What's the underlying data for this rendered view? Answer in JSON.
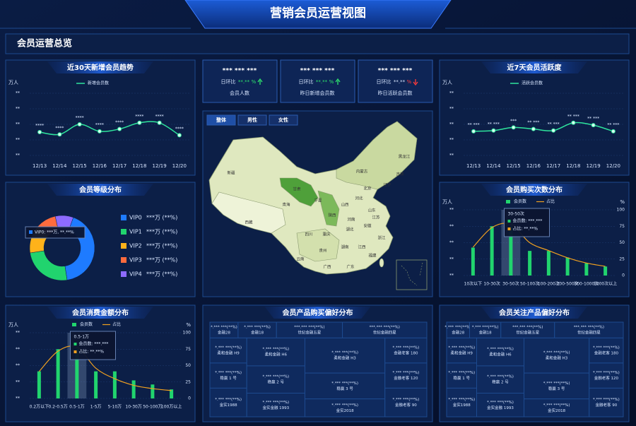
{
  "header": {
    "title": "营销会员运营视图",
    "section": "会员运营总览"
  },
  "kpis": [
    {
      "value": "*** *** ***",
      "ratio_label": "日环比",
      "ratio": "**.**",
      "unit": "%",
      "trend": "up",
      "label": "会员人数"
    },
    {
      "value": "*** *** ***",
      "ratio_label": "日环比",
      "ratio": "**.**",
      "unit": "%",
      "trend": "up",
      "label": "昨日新增会员数"
    },
    {
      "value": "*** *** ***",
      "ratio_label": "日环比",
      "ratio": "**.**",
      "unit": "%",
      "trend": "down",
      "label": "昨日活跃会员数"
    }
  ],
  "map": {
    "tabs": [
      "整体",
      "男性",
      "女性"
    ],
    "labels": [
      "新疆",
      "西藏",
      "青海",
      "甘肃",
      "内蒙古",
      "黑龙江",
      "吉林",
      "辽宁",
      "北京",
      "河北",
      "山西",
      "山东",
      "河南",
      "陕西",
      "宁夏",
      "四川",
      "重庆",
      "湖北",
      "安徽",
      "江苏",
      "浙江",
      "湖南",
      "江西",
      "福建",
      "贵州",
      "云南",
      "广西",
      "广东"
    ]
  },
  "treemaps": [
    {
      "title": "会员产品购买偏好分布",
      "cells": [
        {
          "value": "*.*** ***(**%)",
          "name": "金融28"
        },
        {
          "value": "*.*** ***(**%)",
          "name": "金融18"
        },
        {
          "value": "***.*** ***(**%)",
          "name": "世纪金融五星"
        },
        {
          "value": "***.*** ***(**%)",
          "name": "世纪金融四星"
        },
        {
          "value": "*.*** ***(**%)",
          "name": "柔和金融 H9"
        },
        {
          "value": "*.*** ***(**%)",
          "name": "稳赢 1 号"
        },
        {
          "value": "*.*** ***(**%)",
          "name": "金实1988"
        },
        {
          "value": "*.*** ***(**%)",
          "name": "柔和金融 H6"
        },
        {
          "value": "*.*** ***(**%)",
          "name": "稳赢 2 号"
        },
        {
          "value": "*.*** ***(**%)",
          "name": "金实金融 1993"
        },
        {
          "value": "*.*** ***(**%)",
          "name": "柔和金融 H3"
        },
        {
          "value": "*.*** ***(**%)",
          "name": "稳赢 3 号"
        },
        {
          "value": "*.*** ***(**%)",
          "name": "金实2018"
        },
        {
          "value": "*.*** ***(**%)",
          "name": "金融老客 180"
        },
        {
          "value": "*.*** ***(**%)",
          "name": "金融老客 120"
        },
        {
          "value": "*.*** ***(**%)",
          "name": "金融老客 90"
        }
      ]
    },
    {
      "title": "会员关注产品偏好分布",
      "cells": [
        {
          "value": "*.*** ***(**%)",
          "name": "金融28"
        },
        {
          "value": "*.*** ***(**%)",
          "name": "金融18"
        },
        {
          "value": "***.*** ***(**%)",
          "name": "世纪金融五星"
        },
        {
          "value": "***.*** ***(**%)",
          "name": "世纪金融四星"
        },
        {
          "value": "*.*** ***(**%)",
          "name": "柔和金融 H9"
        },
        {
          "value": "*.*** ***(**%)",
          "name": "稳赢 1 号"
        },
        {
          "value": "*.*** ***(**%)",
          "name": "金实1988"
        },
        {
          "value": "*.*** ***(**%)",
          "name": "柔和金融 H6"
        },
        {
          "value": "*.*** ***(**%)",
          "name": "稳赢 2 号"
        },
        {
          "value": "*.*** ***(**%)",
          "name": "金实金融 1993"
        },
        {
          "value": "*.*** ***(**%)",
          "name": "柔和金融 H3"
        },
        {
          "value": "*.*** ***(**%)",
          "name": "稳赢 3 号"
        },
        {
          "value": "*.*** ***(**%)",
          "name": "金实2018"
        },
        {
          "value": "*.*** ***(**%)",
          "name": "金融老客 180"
        },
        {
          "value": "*.*** ***(**%)",
          "name": "金融老客 120"
        },
        {
          "value": "*.*** ***(**%)",
          "name": "金融老客 90"
        }
      ]
    }
  ],
  "chart_data": [
    {
      "type": "line",
      "title": "近30天新增会员趋势",
      "y_label": "万人",
      "categories": [
        "12/13",
        "12/14",
        "12/15",
        "12/16",
        "12/17",
        "12/18",
        "12/19",
        "12/20"
      ],
      "ylim": [
        0,
        4
      ],
      "yticks": [
        {
          "value": 0,
          "label": "**"
        },
        {
          "value": 1,
          "label": "**"
        },
        {
          "value": 2,
          "label": "**"
        },
        {
          "value": 3,
          "label": "**"
        },
        {
          "value": 4,
          "label": "**"
        }
      ],
      "series": [
        {
          "name": "新增会员数",
          "color": "#2ee59d",
          "values": [
            1.5,
            1.35,
            2.0,
            1.55,
            1.7,
            2.1,
            2.1,
            1.3
          ],
          "value_labels": [
            "****",
            "****",
            "****",
            "****",
            "****",
            "****",
            "****",
            "****"
          ]
        }
      ]
    },
    {
      "type": "line",
      "title": "近7天会员活跃度",
      "y_label": "万人",
      "categories": [
        "12/13",
        "12/14",
        "12/15",
        "12/16",
        "12/17",
        "12/18",
        "12/19",
        "12/20"
      ],
      "ylim": [
        0,
        4
      ],
      "yticks": [
        {
          "value": 0,
          "label": "**"
        },
        {
          "value": 1,
          "label": "**"
        },
        {
          "value": 2,
          "label": "**"
        },
        {
          "value": 3,
          "label": "**"
        },
        {
          "value": 4,
          "label": "**"
        }
      ],
      "series": [
        {
          "name": "活跃会员数",
          "color": "#2ee59d",
          "values": [
            1.55,
            1.6,
            1.8,
            1.7,
            1.6,
            2.1,
            1.95,
            1.55
          ],
          "value_labels": [
            "** ***",
            "** ***",
            "***",
            "** ***",
            "** ***",
            "** ***",
            "** ***",
            "** ***"
          ]
        }
      ]
    },
    {
      "type": "pie",
      "title": "会员等级分布",
      "donut": true,
      "categories": [
        "VIP0",
        "VIP1",
        "VIP2",
        "VIP3",
        "VIP4"
      ],
      "values": [
        42,
        25,
        14,
        10,
        9
      ],
      "value_labels": [
        "***万 (**%)",
        "***万 (**%)",
        "***万 (**%)",
        "***万 (**%)",
        "***万 (**%)"
      ],
      "colors": [
        "#1e7bff",
        "#21d46e",
        "#ffb21a",
        "#ff6b3d",
        "#8d6bff"
      ],
      "tooltip": "VIP0: ***万, **.**%"
    },
    {
      "type": "bar",
      "title": "会员购买次数分布",
      "y_label": "万人",
      "y2_label": "%",
      "categories": [
        "10次以下",
        "10-30次",
        "30-50次",
        "50-100次",
        "100-200次",
        "200-500次",
        "500-1000次",
        "1000次以上"
      ],
      "ylim": [
        0,
        4
      ],
      "yticks": [
        {
          "value": 0,
          "label": "**"
        },
        {
          "value": 1,
          "label": "**"
        },
        {
          "value": 2,
          "label": "**"
        },
        {
          "value": 3,
          "label": "**"
        },
        {
          "value": 4,
          "label": "**"
        }
      ],
      "y2lim": [
        0,
        100
      ],
      "y2ticks": [
        0,
        25,
        50,
        75,
        100
      ],
      "series": [
        {
          "name": "会员数",
          "type": "bar",
          "color": "#21d46e",
          "values": [
            1.7,
            3,
            3,
            1.5,
            1.5,
            1.1,
            0.75,
            0.55
          ]
        },
        {
          "name": "占比",
          "type": "line",
          "axis": "y2",
          "color": "#f0a020",
          "values": [
            43,
            73,
            78,
            50,
            38,
            27,
            19,
            14
          ]
        }
      ],
      "tooltip": {
        "title": "30-50次",
        "lines": [
          "会员数: ***.***",
          "占比: **.**%"
        ]
      }
    },
    {
      "type": "bar",
      "title": "会员消费金额分布",
      "y_label": "万人",
      "y2_label": "%",
      "categories": [
        "0.2万以下",
        "0.2-0.5万",
        "0.5-1万",
        "1-5万",
        "5-10万",
        "10-30万",
        "50-100万",
        "100万以上"
      ],
      "ylim": [
        0,
        4
      ],
      "yticks": [
        {
          "value": 0,
          "label": "**"
        },
        {
          "value": 1,
          "label": "**"
        },
        {
          "value": 2,
          "label": "**"
        },
        {
          "value": 3,
          "label": "**"
        },
        {
          "value": 4,
          "label": "**"
        }
      ],
      "y2lim": [
        0,
        100
      ],
      "y2ticks": [
        0,
        25,
        50,
        75,
        100
      ],
      "series": [
        {
          "name": "会员数",
          "type": "bar",
          "color": "#21d46e",
          "values": [
            1.65,
            3,
            3,
            1.65,
            1.65,
            1.1,
            0.85,
            0.55
          ]
        },
        {
          "name": "占比",
          "type": "line",
          "axis": "y2",
          "color": "#f0a020",
          "values": [
            41,
            72,
            78,
            46,
            30,
            20,
            15,
            12
          ]
        }
      ],
      "tooltip": {
        "title": "0.5-1万",
        "lines": [
          "会员数: ***.***",
          "占比: **.**%"
        ]
      }
    }
  ]
}
